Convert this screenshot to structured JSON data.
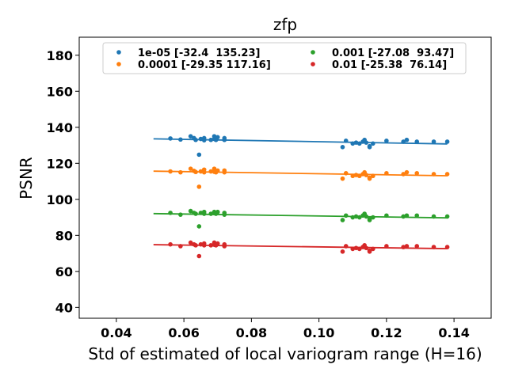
{
  "chart_data": {
    "type": "scatter",
    "title": "zfp",
    "xlabel": "Std of estimated of local variogram range (H=16)",
    "ylabel": "PSNR",
    "xlim": [
      0.029,
      0.151
    ],
    "ylim": [
      34,
      190
    ],
    "xticks": [
      0.04,
      0.06,
      0.08,
      0.1,
      0.12,
      0.14
    ],
    "xtick_labels": [
      "0.04",
      "0.06",
      "0.08",
      "0.10",
      "0.12",
      "0.14"
    ],
    "yticks": [
      40,
      60,
      80,
      100,
      120,
      140,
      160,
      180
    ],
    "ytick_labels": [
      "40",
      "60",
      "80",
      "100",
      "120",
      "140",
      "160",
      "180"
    ],
    "grid": false,
    "legend_placement": "top-center",
    "legend_columns": 2,
    "series": [
      {
        "name": "1e-05 [-32.4  135.23]",
        "color": "#1f77b4",
        "slope": -32.4,
        "intercept": 135.23,
        "fit_x": [
          0.051,
          0.138
        ],
        "x": [
          0.056,
          0.059,
          0.062,
          0.063,
          0.0635,
          0.0645,
          0.065,
          0.066,
          0.066,
          0.068,
          0.069,
          0.069,
          0.0695,
          0.07,
          0.072,
          0.072,
          0.107,
          0.108,
          0.11,
          0.111,
          0.112,
          0.113,
          0.1135,
          0.114,
          0.115,
          0.115,
          0.116,
          0.12,
          0.125,
          0.126,
          0.129,
          0.134,
          0.138
        ],
        "y": [
          133.8,
          133.2,
          135.0,
          134.0,
          133.0,
          124.8,
          133.5,
          134.0,
          132.8,
          133.0,
          135.0,
          133.5,
          133.0,
          134.5,
          133.0,
          134.0,
          129.0,
          132.5,
          131.0,
          131.5,
          131.0,
          132.0,
          133.0,
          131.5,
          129.5,
          129.0,
          131.0,
          132.5,
          132.0,
          133.0,
          132.0,
          132.0,
          132.0
        ]
      },
      {
        "name": "0.0001 [-29.35 117.16]",
        "color": "#ff7f0e",
        "slope": -29.35,
        "intercept": 117.16,
        "fit_x": [
          0.051,
          0.138
        ],
        "x": [
          0.056,
          0.059,
          0.062,
          0.063,
          0.0635,
          0.0645,
          0.065,
          0.066,
          0.066,
          0.068,
          0.069,
          0.069,
          0.0695,
          0.07,
          0.072,
          0.072,
          0.107,
          0.108,
          0.11,
          0.111,
          0.112,
          0.113,
          0.1135,
          0.114,
          0.115,
          0.115,
          0.116,
          0.12,
          0.125,
          0.126,
          0.129,
          0.134,
          0.138
        ],
        "y": [
          115.5,
          115.0,
          117.0,
          115.8,
          115.2,
          107.0,
          115.5,
          116.5,
          115.0,
          115.5,
          117.0,
          115.3,
          115.0,
          116.0,
          115.0,
          116.0,
          111.5,
          114.5,
          113.0,
          113.5,
          113.0,
          114.0,
          115.0,
          113.5,
          112.0,
          111.5,
          113.0,
          114.5,
          114.0,
          115.0,
          114.5,
          114.0,
          114.0
        ]
      },
      {
        "name": "0.001 [-27.08  93.47]",
        "color": "#2ca02c",
        "slope": -27.08,
        "intercept": 93.47,
        "fit_x": [
          0.051,
          0.138
        ],
        "x": [
          0.056,
          0.059,
          0.062,
          0.063,
          0.0635,
          0.0645,
          0.065,
          0.066,
          0.066,
          0.068,
          0.069,
          0.069,
          0.0695,
          0.07,
          0.072,
          0.072,
          0.107,
          0.108,
          0.11,
          0.111,
          0.112,
          0.113,
          0.1135,
          0.114,
          0.115,
          0.115,
          0.116,
          0.12,
          0.125,
          0.126,
          0.129,
          0.134,
          0.138
        ],
        "y": [
          92.5,
          91.5,
          93.5,
          92.5,
          92.0,
          85.0,
          92.5,
          93.0,
          92.0,
          92.0,
          93.0,
          92.3,
          92.0,
          93.0,
          91.5,
          92.5,
          88.5,
          91.0,
          90.0,
          90.5,
          90.0,
          91.0,
          92.0,
          90.5,
          89.0,
          88.5,
          90.0,
          91.0,
          90.5,
          91.0,
          91.0,
          90.5,
          90.5
        ]
      },
      {
        "name": "0.01 [-25.38  76.14]",
        "color": "#d62728",
        "slope": -25.38,
        "intercept": 76.14,
        "fit_x": [
          0.051,
          0.138
        ],
        "x": [
          0.056,
          0.059,
          0.062,
          0.063,
          0.0635,
          0.0645,
          0.065,
          0.066,
          0.066,
          0.068,
          0.069,
          0.069,
          0.0695,
          0.07,
          0.072,
          0.072,
          0.107,
          0.108,
          0.11,
          0.111,
          0.112,
          0.113,
          0.1135,
          0.114,
          0.115,
          0.115,
          0.116,
          0.12,
          0.125,
          0.126,
          0.129,
          0.134,
          0.138
        ],
        "y": [
          75.0,
          74.0,
          76.0,
          75.0,
          74.5,
          68.5,
          75.0,
          75.5,
          74.5,
          74.5,
          76.0,
          74.8,
          74.5,
          75.5,
          74.0,
          75.0,
          71.0,
          74.0,
          72.5,
          73.0,
          72.5,
          73.5,
          74.5,
          73.0,
          71.5,
          71.0,
          72.5,
          74.0,
          73.5,
          74.0,
          74.0,
          73.5,
          73.5
        ]
      }
    ]
  }
}
